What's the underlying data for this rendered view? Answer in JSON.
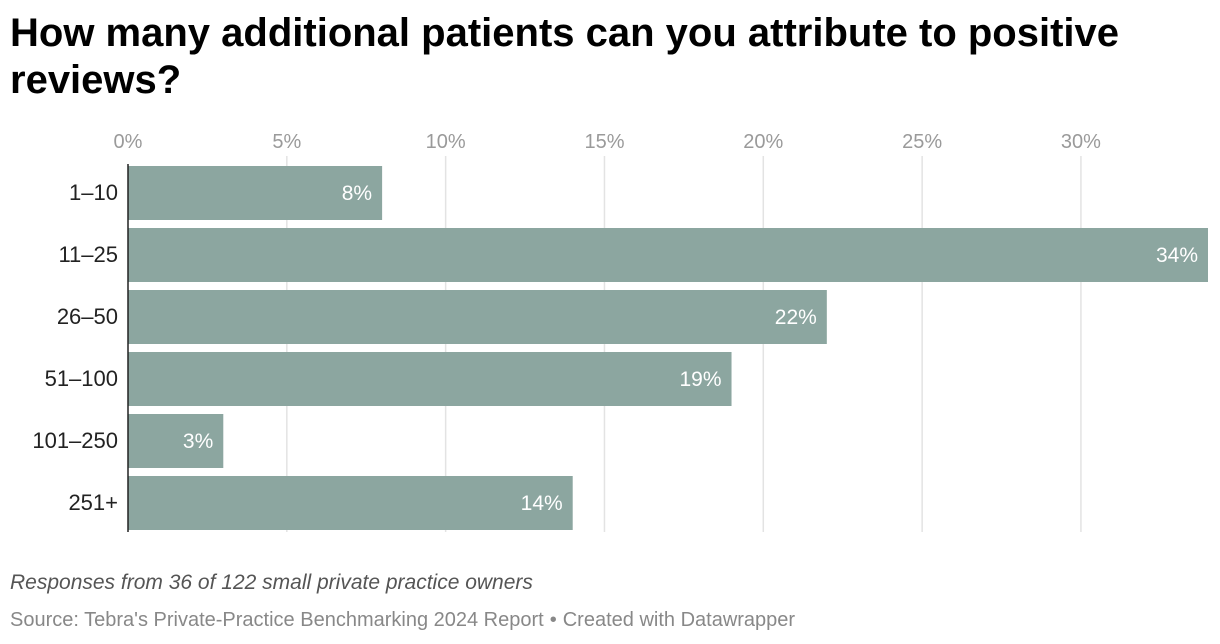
{
  "chart_data": {
    "type": "bar",
    "orientation": "horizontal",
    "title": "How many additional patients can you attribute to positive reviews?",
    "categories": [
      "1–10",
      "11–25",
      "26–50",
      "51–100",
      "101–250",
      "251+"
    ],
    "values": [
      8,
      34,
      22,
      19,
      3,
      14
    ],
    "value_labels": [
      "8%",
      "34%",
      "22%",
      "19%",
      "3%",
      "14%"
    ],
    "x_ticks": [
      0,
      5,
      10,
      15,
      20,
      25,
      30
    ],
    "x_tick_labels": [
      "0%",
      "5%",
      "10%",
      "15%",
      "20%",
      "25%",
      "30%"
    ],
    "xlim": [
      0,
      34
    ],
    "xlabel": "",
    "ylabel": "",
    "grid": true,
    "legend": "none",
    "bar_color": "#8ca6a0",
    "notes": "Responses from 36 of 122 small private practice owners",
    "source": "Source: Tebra's Private-Practice Benchmarking 2024 Report",
    "credit": "Created with Datawrapper"
  },
  "colors": {
    "bar": "#8ca6a0",
    "bar_label": "#ffffff",
    "grid": "#e3e3e3",
    "tick_label": "#9a9a9a",
    "category_label": "#222222",
    "axis_line": "#222222"
  }
}
